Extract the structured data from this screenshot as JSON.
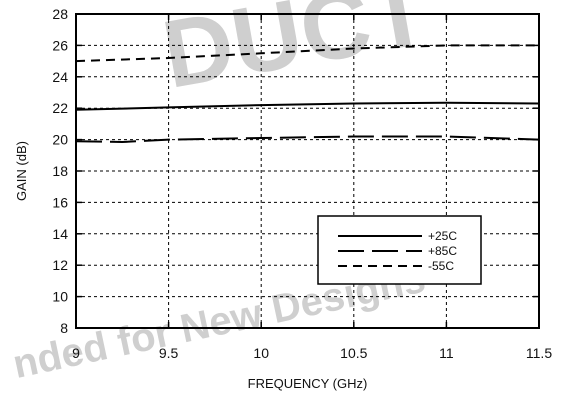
{
  "watermark": {
    "big": "DUCT",
    "line": "nded for New Designs"
  },
  "chart_data": {
    "type": "line",
    "title": "",
    "xlabel": "FREQUENCY (GHz)",
    "ylabel": "GAIN (dB)",
    "xlim": [
      9,
      11.5
    ],
    "ylim": [
      8,
      28
    ],
    "xticks": [
      9,
      9.5,
      10,
      10.5,
      11,
      11.5
    ],
    "xtick_labels": [
      "9",
      "9.5",
      "10",
      "10.5",
      "11",
      "11.5"
    ],
    "yticks": [
      8,
      10,
      12,
      14,
      16,
      18,
      20,
      22,
      24,
      26,
      28
    ],
    "ytick_labels": [
      "8",
      "10",
      "12",
      "14",
      "16",
      "18",
      "20",
      "22",
      "24",
      "26",
      "28"
    ],
    "grid": true,
    "legend_position": "lower-right",
    "series": [
      {
        "name": "+25C",
        "style": "solid",
        "x": [
          9.0,
          9.5,
          10.0,
          10.5,
          11.0,
          11.5
        ],
        "y": [
          21.9,
          22.05,
          22.2,
          22.3,
          22.35,
          22.3
        ]
      },
      {
        "name": "+85C",
        "style": "long-dash",
        "x": [
          9.0,
          9.25,
          9.5,
          10.0,
          10.5,
          11.0,
          11.5
        ],
        "y": [
          19.9,
          19.85,
          20.0,
          20.1,
          20.2,
          20.2,
          20.0
        ]
      },
      {
        "name": "-55C",
        "style": "short-dash",
        "x": [
          9.0,
          9.5,
          10.0,
          10.5,
          11.0,
          11.5
        ],
        "y": [
          25.0,
          25.2,
          25.5,
          25.8,
          26.0,
          26.0
        ]
      }
    ]
  }
}
